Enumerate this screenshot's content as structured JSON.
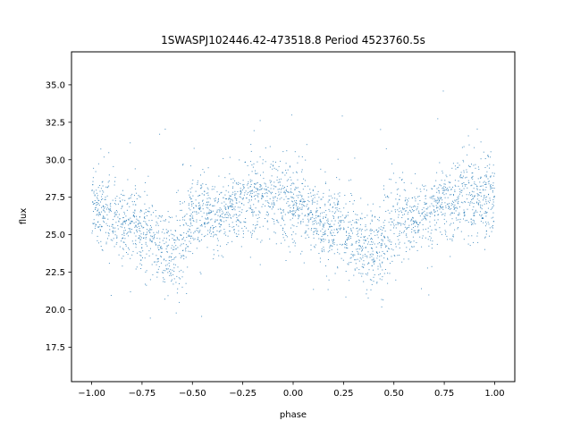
{
  "chart_data": {
    "type": "scatter",
    "title": "1SWASPJ102446.42-473518.8 Period 4523760.5s",
    "xlabel": "phase",
    "ylabel": "flux",
    "xlim": [
      -1.1,
      1.1
    ],
    "ylim": [
      15.2,
      37.2
    ],
    "xticks": [
      -1.0,
      -0.75,
      -0.5,
      -0.25,
      0.0,
      0.25,
      0.5,
      0.75,
      1.0
    ],
    "xtick_labels": [
      "−1.00",
      "−0.75",
      "−0.50",
      "−0.25",
      "0.00",
      "0.25",
      "0.50",
      "0.75",
      "1.00"
    ],
    "yticks": [
      17.5,
      20.0,
      22.5,
      25.0,
      27.5,
      30.0,
      32.5,
      35.0
    ],
    "ytick_labels": [
      "17.5",
      "20.0",
      "22.5",
      "25.0",
      "27.5",
      "30.0",
      "32.5",
      "35.0"
    ],
    "grid": false,
    "marker_color": "#1f77b4",
    "series": [
      {
        "phase": [
          -1.0,
          -0.95,
          -0.9,
          -0.85,
          -0.8,
          -0.75,
          -0.7,
          -0.65,
          -0.6,
          -0.55,
          -0.5,
          -0.45,
          -0.4,
          -0.35,
          -0.3,
          -0.25,
          -0.2,
          -0.15,
          -0.1,
          -0.05,
          0.0,
          0.05,
          0.1,
          0.15,
          0.2,
          0.25,
          0.3,
          0.35,
          0.4,
          0.45,
          0.5,
          0.55,
          0.6,
          0.65,
          0.7,
          0.75,
          0.8,
          0.85,
          0.9,
          0.95,
          1.0
        ],
        "flux": [
          27.3,
          26.8,
          26.0,
          25.5,
          25.6,
          25.3,
          24.8,
          24.2,
          23.6,
          24.5,
          26.2,
          26.5,
          26.0,
          26.3,
          26.8,
          27.2,
          27.6,
          27.6,
          27.3,
          27.4,
          27.3,
          26.8,
          26.0,
          25.5,
          25.6,
          25.3,
          24.8,
          24.2,
          23.6,
          24.5,
          26.2,
          26.5,
          26.0,
          26.3,
          26.8,
          27.2,
          27.6,
          27.6,
          27.3,
          27.4,
          27.3
        ],
        "flux_spread": [
          1.1,
          1.2,
          1.2,
          1.2,
          1.3,
          1.3,
          1.3,
          1.3,
          1.4,
          1.6,
          1.3,
          1.2,
          1.2,
          1.1,
          1.1,
          1.2,
          1.3,
          1.3,
          1.4,
          1.5,
          1.4,
          1.2,
          1.2,
          1.2,
          1.3,
          1.3,
          1.3,
          1.3,
          1.4,
          1.6,
          1.3,
          1.2,
          1.2,
          1.1,
          1.1,
          1.2,
          1.3,
          1.3,
          1.4,
          1.5,
          1.4
        ]
      }
    ]
  }
}
